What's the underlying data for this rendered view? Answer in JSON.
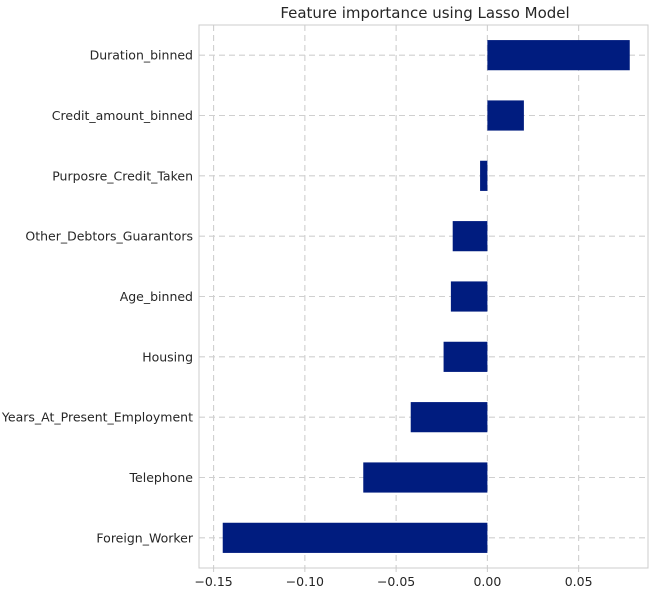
{
  "chart_data": {
    "type": "bar",
    "orientation": "horizontal",
    "title": "Feature importance using Lasso Model",
    "xlabel": "",
    "ylabel": "",
    "categories": [
      "Duration_binned",
      "Credit_amount_binned",
      "Purposre_Credit_Taken",
      "Other_Debtors_Guarantors",
      "Age_binned",
      "Housing",
      "Years_At_Present_Employment",
      "Telephone",
      "Foreign_Worker"
    ],
    "values": [
      0.078,
      0.02,
      -0.004,
      -0.019,
      -0.02,
      -0.024,
      -0.042,
      -0.068,
      -0.145
    ],
    "xlim": [
      -0.158,
      0.088
    ],
    "xticks": [
      -0.15,
      -0.1,
      -0.05,
      0.0,
      0.05
    ],
    "xtick_labels": [
      "−0.15",
      "−0.10",
      "−0.05",
      "0.00",
      "0.05"
    ],
    "grid": true,
    "grid_style": "dashed",
    "bar_color": "#001c7f"
  }
}
